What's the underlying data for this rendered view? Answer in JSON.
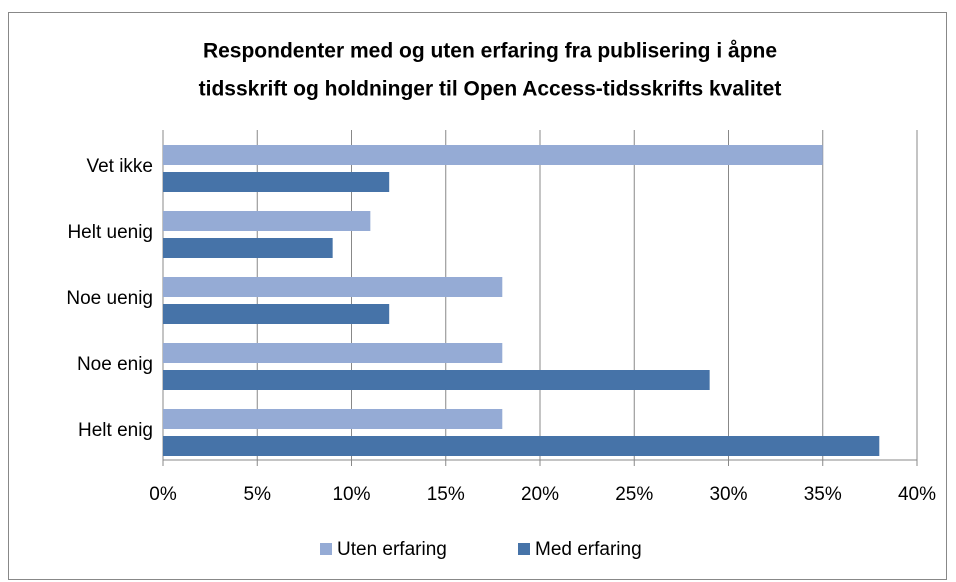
{
  "chart_data": {
    "type": "bar",
    "orientation": "horizontal",
    "title": [
      "Respondenter med og uten erfaring fra publisering i åpne",
      "tidsskrift og holdninger til Open Access-tidsskrifts kvalitet"
    ],
    "categories": [
      "Vet ikke",
      "Helt uenig",
      "Noe uenig",
      "Noe enig",
      "Helt enig"
    ],
    "series": [
      {
        "name": "Uten erfaring",
        "color": "#95abd5",
        "values": [
          35,
          11,
          18,
          18,
          18
        ]
      },
      {
        "name": "Med erfaring",
        "color": "#4673a8",
        "values": [
          12,
          9,
          12,
          29,
          38
        ]
      }
    ],
    "xlim": [
      0,
      40
    ],
    "xticks": [
      {
        "value": 0,
        "label": "0%"
      },
      {
        "value": 5,
        "label": "5%"
      },
      {
        "value": 10,
        "label": "10%"
      },
      {
        "value": 15,
        "label": "15%"
      },
      {
        "value": 20,
        "label": "20%"
      },
      {
        "value": 25,
        "label": "25%"
      },
      {
        "value": 30,
        "label": "30%"
      },
      {
        "value": 35,
        "label": "35%"
      },
      {
        "value": 40,
        "label": "40%"
      }
    ],
    "grid": true,
    "legend": "bottom"
  }
}
